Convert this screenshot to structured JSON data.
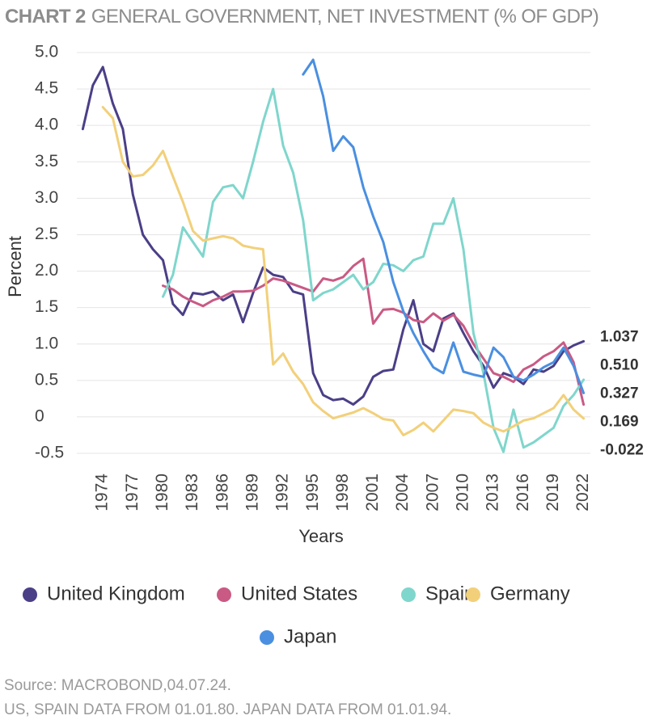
{
  "chart_data": {
    "type": "line",
    "title_number": "CHART 2",
    "title": "GENERAL GOVERNMENT, NET INVESTMENT (% OF GDP)",
    "x_label": "Years",
    "y_label": "Percent",
    "xlim": [
      1971,
      2023
    ],
    "xticks": [
      1974,
      1977,
      1980,
      1983,
      1986,
      1989,
      1992,
      1995,
      1998,
      2001,
      2004,
      2007,
      2010,
      2013,
      2016,
      2019,
      2022
    ],
    "ylim": [
      -0.5,
      5.0
    ],
    "yticks": [
      {
        "value": 5,
        "label": "5.0"
      },
      4.5,
      {
        "value": 4,
        "label": "4.0"
      },
      3.5,
      {
        "value": 3,
        "label": "3.0"
      },
      2.5,
      {
        "value": 2,
        "label": "2.0"
      },
      1.5,
      {
        "value": 1,
        "label": "1.0"
      },
      0.5,
      0,
      -0.5
    ],
    "grid": true,
    "series": [
      {
        "name": "United Kingdom",
        "color": "#4b3f87",
        "x": [
          1972,
          1973,
          1974,
          1975,
          1976,
          1977,
          1978,
          1979,
          1980,
          1981,
          1982,
          1983,
          1984,
          1985,
          1986,
          1987,
          1988,
          1989,
          1990,
          1991,
          1992,
          1993,
          1994,
          1995,
          1996,
          1997,
          1998,
          1999,
          2000,
          2001,
          2002,
          2003,
          2004,
          2005,
          2006,
          2007,
          2008,
          2009,
          2010,
          2011,
          2012,
          2013,
          2014,
          2015,
          2016,
          2017,
          2018,
          2019,
          2020,
          2021,
          2022
        ],
        "values": [
          3.95,
          4.55,
          4.8,
          4.3,
          3.95,
          3.05,
          2.5,
          2.3,
          2.15,
          1.55,
          1.4,
          1.7,
          1.68,
          1.72,
          1.6,
          1.68,
          1.3,
          1.7,
          2.05,
          1.95,
          1.92,
          1.72,
          1.68,
          0.6,
          0.3,
          0.23,
          0.25,
          0.17,
          0.28,
          0.55,
          0.63,
          0.65,
          1.2,
          1.6,
          1.0,
          0.9,
          1.35,
          1.42,
          1.15,
          0.9,
          0.7,
          0.4,
          0.6,
          0.55,
          0.45,
          0.65,
          0.62,
          0.7,
          0.9,
          0.98,
          1.037
        ]
      },
      {
        "name": "United States",
        "color": "#c95a84",
        "x": [
          1980,
          1981,
          1982,
          1983,
          1984,
          1985,
          1986,
          1987,
          1988,
          1989,
          1990,
          1991,
          1992,
          1993,
          1994,
          1995,
          1996,
          1997,
          1998,
          1999,
          2000,
          2001,
          2002,
          2003,
          2004,
          2005,
          2006,
          2007,
          2008,
          2009,
          2010,
          2011,
          2012,
          2013,
          2014,
          2015,
          2016,
          2017,
          2018,
          2019,
          2020,
          2021,
          2022
        ],
        "values": [
          1.8,
          1.75,
          1.65,
          1.58,
          1.52,
          1.6,
          1.65,
          1.72,
          1.72,
          1.73,
          1.8,
          1.9,
          1.87,
          1.82,
          1.77,
          1.72,
          1.9,
          1.87,
          1.92,
          2.07,
          2.17,
          1.28,
          1.47,
          1.48,
          1.43,
          1.33,
          1.3,
          1.42,
          1.32,
          1.4,
          1.25,
          1.0,
          0.8,
          0.6,
          0.55,
          0.48,
          0.65,
          0.72,
          0.83,
          0.9,
          1.02,
          0.75,
          0.169
        ]
      },
      {
        "name": "Spain",
        "color": "#7fd6cc",
        "x": [
          1980,
          1981,
          1982,
          1983,
          1984,
          1985,
          1986,
          1987,
          1988,
          1989,
          1990,
          1991,
          1992,
          1993,
          1994,
          1995,
          1996,
          1997,
          1998,
          1999,
          2000,
          2001,
          2002,
          2003,
          2004,
          2005,
          2006,
          2007,
          2008,
          2009,
          2010,
          2011,
          2012,
          2013,
          2014,
          2015,
          2016,
          2017,
          2018,
          2019,
          2020,
          2021,
          2022
        ],
        "values": [
          1.65,
          1.95,
          2.6,
          2.4,
          2.2,
          2.95,
          3.15,
          3.18,
          3.0,
          3.5,
          4.05,
          4.5,
          3.72,
          3.35,
          2.7,
          1.6,
          1.7,
          1.75,
          1.85,
          1.95,
          1.75,
          1.85,
          2.1,
          2.08,
          2.0,
          2.15,
          2.2,
          2.65,
          2.65,
          3.0,
          2.3,
          1.15,
          0.6,
          -0.15,
          -0.48,
          0.1,
          -0.42,
          -0.35,
          -0.25,
          -0.15,
          0.15,
          0.3,
          0.51
        ],
        "value_labels": [
          null,
          null,
          null,
          null,
          null,
          null,
          null,
          null,
          null,
          null,
          null,
          null,
          null,
          null,
          null,
          null,
          null,
          null,
          null,
          null,
          null,
          null,
          null,
          null,
          null,
          null,
          null,
          null,
          null,
          null,
          null,
          null,
          null,
          null,
          null,
          null,
          null,
          null,
          null,
          null,
          null,
          null,
          "0.510"
        ]
      },
      {
        "name": "Germany",
        "color": "#f2d07a",
        "x": [
          1974,
          1975,
          1976,
          1977,
          1978,
          1979,
          1980,
          1981,
          1982,
          1983,
          1984,
          1985,
          1986,
          1987,
          1988,
          1989,
          1990,
          1991,
          1992,
          1993,
          1994,
          1995,
          1996,
          1997,
          1998,
          1999,
          2000,
          2001,
          2002,
          2003,
          2004,
          2005,
          2006,
          2007,
          2008,
          2009,
          2010,
          2011,
          2012,
          2013,
          2014,
          2015,
          2016,
          2017,
          2018,
          2019,
          2020,
          2021,
          2022
        ],
        "values": [
          4.25,
          4.1,
          3.5,
          3.3,
          3.32,
          3.45,
          3.65,
          3.3,
          2.95,
          2.55,
          2.42,
          2.45,
          2.48,
          2.45,
          2.35,
          2.32,
          2.3,
          0.72,
          0.87,
          0.62,
          0.45,
          0.2,
          0.08,
          -0.02,
          0.02,
          0.06,
          0.12,
          0.05,
          -0.03,
          -0.05,
          -0.25,
          -0.18,
          -0.08,
          -0.2,
          -0.05,
          0.1,
          0.08,
          0.05,
          -0.08,
          -0.15,
          -0.2,
          -0.13,
          -0.05,
          -0.02,
          0.05,
          0.12,
          0.3,
          0.1,
          -0.022
        ]
      },
      {
        "name": "Japan",
        "color": "#4a8fe0",
        "x": [
          1994,
          1995,
          1996,
          1997,
          1998,
          1999,
          2000,
          2001,
          2002,
          2003,
          2004,
          2005,
          2006,
          2007,
          2008,
          2009,
          2010,
          2011,
          2012,
          2013,
          2014,
          2015,
          2016,
          2017,
          2018,
          2019,
          2020,
          2021,
          2022
        ],
        "values": [
          4.7,
          4.9,
          4.4,
          3.65,
          3.85,
          3.7,
          3.15,
          2.75,
          2.4,
          1.85,
          1.45,
          1.15,
          0.9,
          0.68,
          0.6,
          1.02,
          0.62,
          0.58,
          0.55,
          0.95,
          0.82,
          0.55,
          0.5,
          0.58,
          0.68,
          0.75,
          0.95,
          0.7,
          0.327
        ]
      }
    ],
    "source": "Source: MACROBOND,04.07.24.",
    "note": "US, SPAIN DATA FROM 01.01.80. JAPAN DATA FROM 01.01.94."
  }
}
